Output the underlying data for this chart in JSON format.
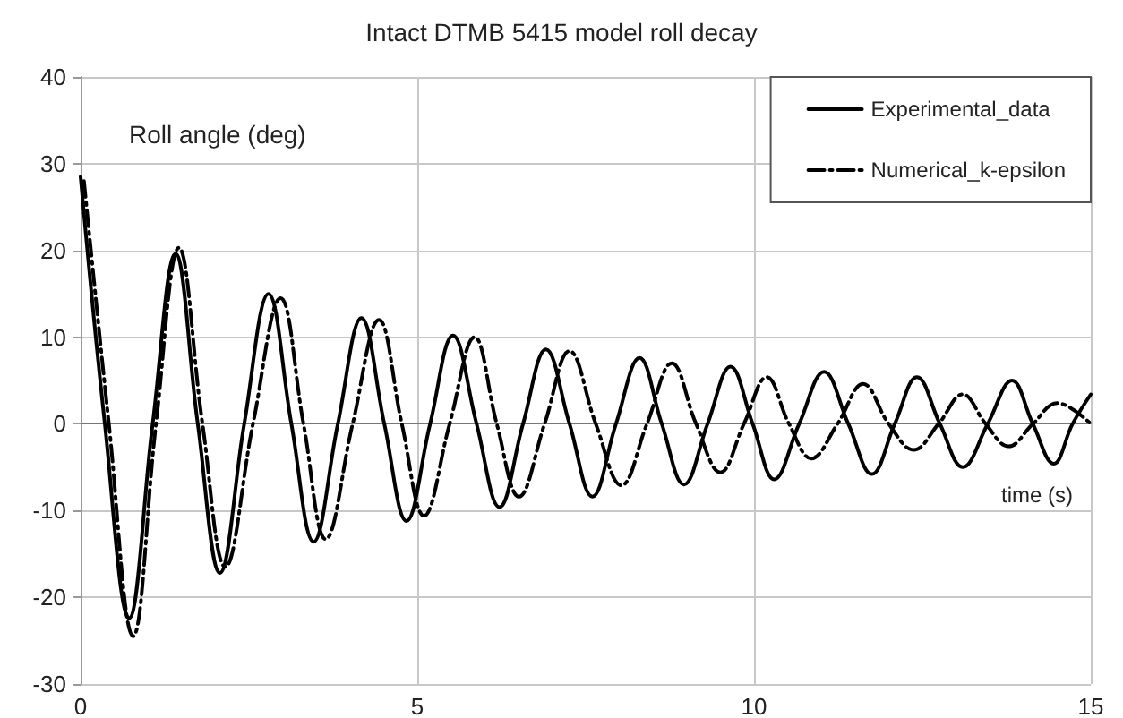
{
  "chart_data": {
    "type": "line",
    "title": "Intact DTMB 5415 model roll decay",
    "xlabel": "time (s)",
    "ylabel": "Roll angle (deg)",
    "xlim": [
      0,
      15
    ],
    "xticks": [
      0,
      5,
      10,
      15
    ],
    "ylim": [
      -30,
      40
    ],
    "yticks": [
      -30,
      -20,
      -10,
      0,
      10,
      20,
      30,
      40
    ],
    "grid": true,
    "legend": "top right",
    "marker": "none",
    "series": [
      {
        "name": "Experimental_data",
        "color": "#000000",
        "line_style": "solid",
        "x": [
          0,
          0.36,
          0.72,
          1.07,
          1.41,
          1.74,
          2.07,
          2.43,
          2.79,
          3.13,
          3.46,
          3.82,
          4.17,
          4.51,
          4.84,
          5.19,
          5.53,
          5.88,
          6.22,
          6.57,
          6.91,
          7.26,
          7.6,
          7.95,
          8.3,
          8.63,
          8.96,
          9.31,
          9.65,
          9.98,
          10.3,
          10.67,
          11.04,
          11.4,
          11.75,
          12.09,
          12.42,
          12.76,
          13.1,
          13.47,
          13.83,
          14.14,
          14.45,
          14.73,
          15
        ],
        "values": [
          28.5,
          0,
          -22.4,
          0,
          19.6,
          0,
          -17.2,
          0,
          15,
          0,
          -13.6,
          0,
          12.2,
          0,
          -11.2,
          0,
          10.2,
          0,
          -9.6,
          0,
          8.6,
          0,
          -8.4,
          0,
          7.6,
          0,
          -7,
          0,
          6.6,
          0,
          -6.4,
          0,
          6,
          0,
          -5.8,
          0,
          5.4,
          0,
          -5,
          0,
          5,
          0,
          -4.6,
          0,
          3.4
        ]
      },
      {
        "name": "Numerical_k-epsilon",
        "color": "#000000",
        "line_style": "dashed",
        "x": [
          0.05,
          0.42,
          0.78,
          1.12,
          1.46,
          1.81,
          2.15,
          2.56,
          2.97,
          3.31,
          3.64,
          4.04,
          4.43,
          4.77,
          5.1,
          5.48,
          5.85,
          6.18,
          6.51,
          6.89,
          7.26,
          7.65,
          8.03,
          8.41,
          8.78,
          9.14,
          9.5,
          9.85,
          10.19,
          10.52,
          10.85,
          11.24,
          11.62,
          12,
          12.37,
          12.74,
          13.1,
          13.44,
          13.78,
          14.14,
          14.5,
          15
        ],
        "values": [
          28,
          0,
          -24.5,
          0,
          20.3,
          0,
          -16.5,
          0,
          14.5,
          0,
          -13.3,
          0,
          12,
          0,
          -10.6,
          0,
          10,
          0,
          -8.4,
          0,
          8.4,
          0,
          -7.1,
          0,
          7,
          0,
          -5.6,
          0,
          5.4,
          0,
          -4,
          0,
          4.6,
          0,
          -3,
          0,
          3.4,
          0,
          -2.6,
          0,
          2.4,
          0
        ]
      }
    ]
  }
}
